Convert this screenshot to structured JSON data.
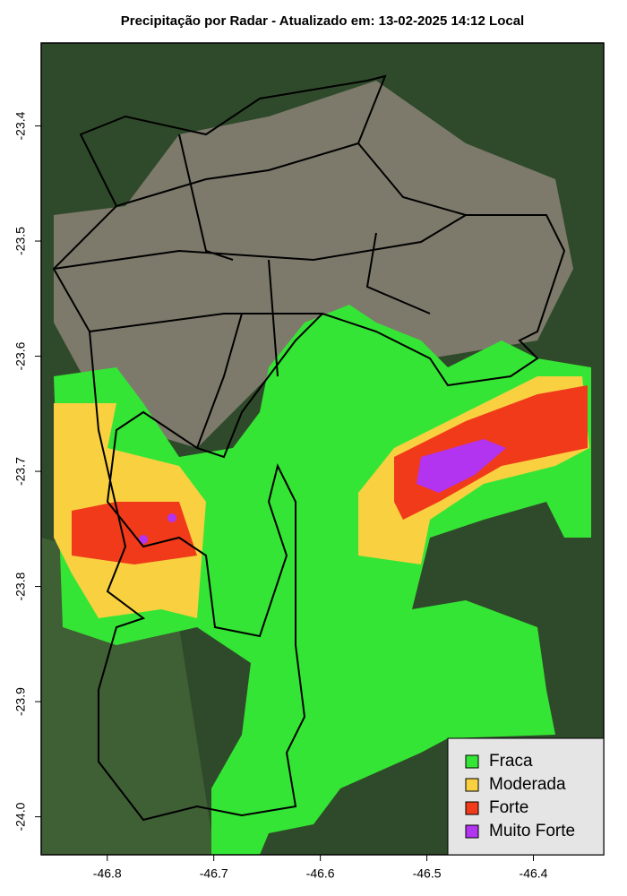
{
  "chart_data": {
    "type": "map",
    "title": "Precipitação por Radar - Atualizado em: 13-02-2025 14:12 Local",
    "xlim": [
      -46.862,
      -46.334
    ],
    "ylim": [
      -24.033,
      -23.328
    ],
    "xticks": [
      -46.8,
      -46.7,
      -46.6,
      -46.5,
      -46.4
    ],
    "yticks": [
      -23.4,
      -23.5,
      -23.6,
      -23.7,
      -23.8,
      -23.9,
      {
        "value": -24,
        "label": "-24.0"
      }
    ],
    "legend": {
      "position": "bottom-right",
      "items": [
        {
          "label": "Fraca",
          "color": "#35e535"
        },
        {
          "label": "Moderada",
          "color": "#f8d040"
        },
        {
          "label": "Forte",
          "color": "#f03a1a"
        },
        {
          "label": "Muito Forte",
          "color": "#b233f0"
        }
      ]
    }
  }
}
